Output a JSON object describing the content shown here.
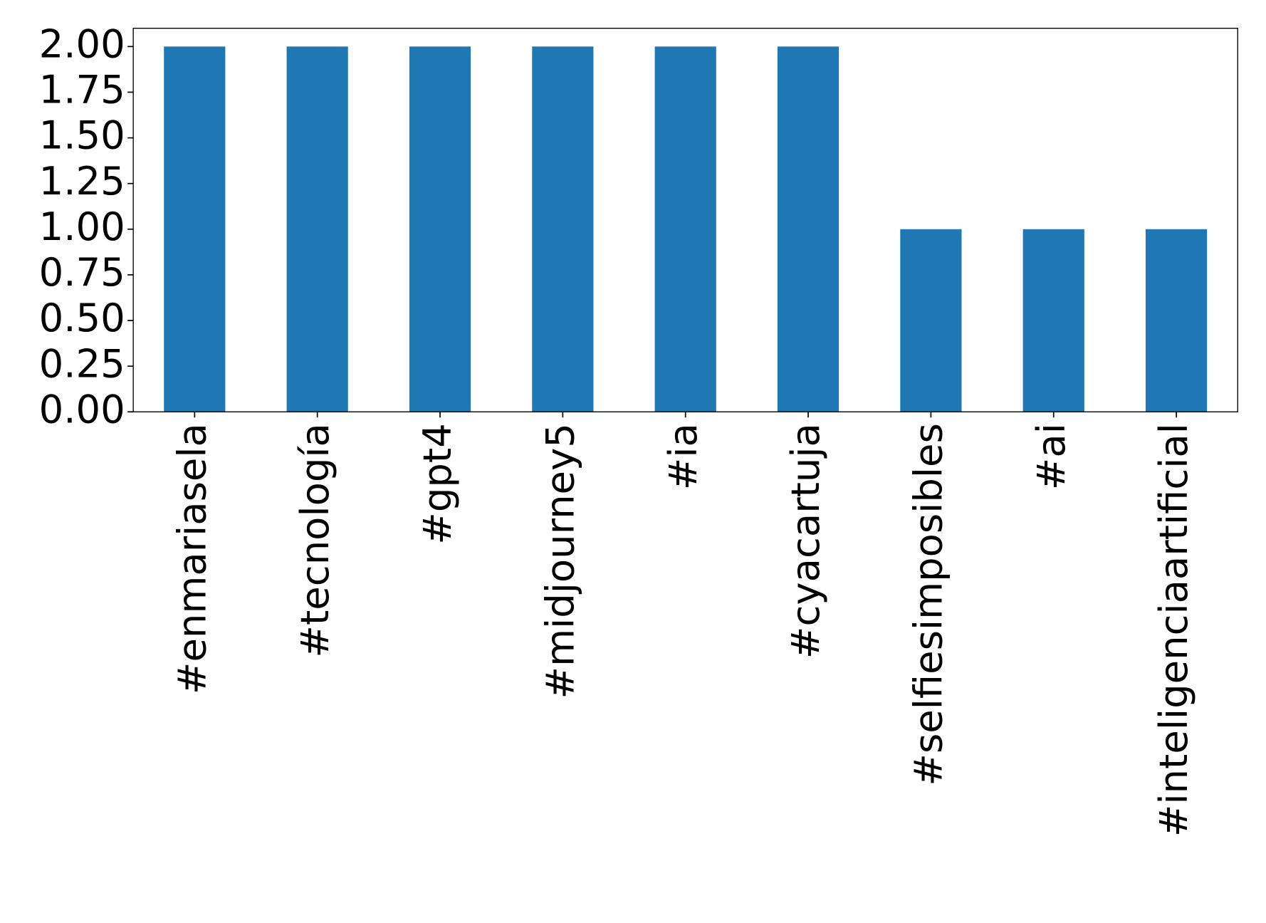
{
  "chart_data": {
    "type": "bar",
    "categories": [
      "#enmariasela",
      "#tecnología",
      "#gpt4",
      "#midjourney5",
      "#ia",
      "#cyacartuja",
      "#selfiesimposibles",
      "#ai",
      "#inteligenciaartificial"
    ],
    "values": [
      2,
      2,
      2,
      2,
      2,
      2,
      1,
      1,
      1
    ],
    "color": "#1f77b4",
    "ylim": [
      0,
      2.1
    ],
    "yticks": [
      {
        "value": 0,
        "label": "0.00"
      },
      {
        "value": 0.25,
        "label": "0.25"
      },
      {
        "value": 0.5,
        "label": "0.50"
      },
      {
        "value": 0.75,
        "label": "0.75"
      },
      {
        "value": 1,
        "label": "1.00"
      },
      {
        "value": 1.25,
        "label": "1.25"
      },
      {
        "value": 1.5,
        "label": "1.50"
      },
      {
        "value": 1.75,
        "label": "1.75"
      },
      {
        "value": 2,
        "label": "2.00"
      }
    ],
    "grid": false
  }
}
